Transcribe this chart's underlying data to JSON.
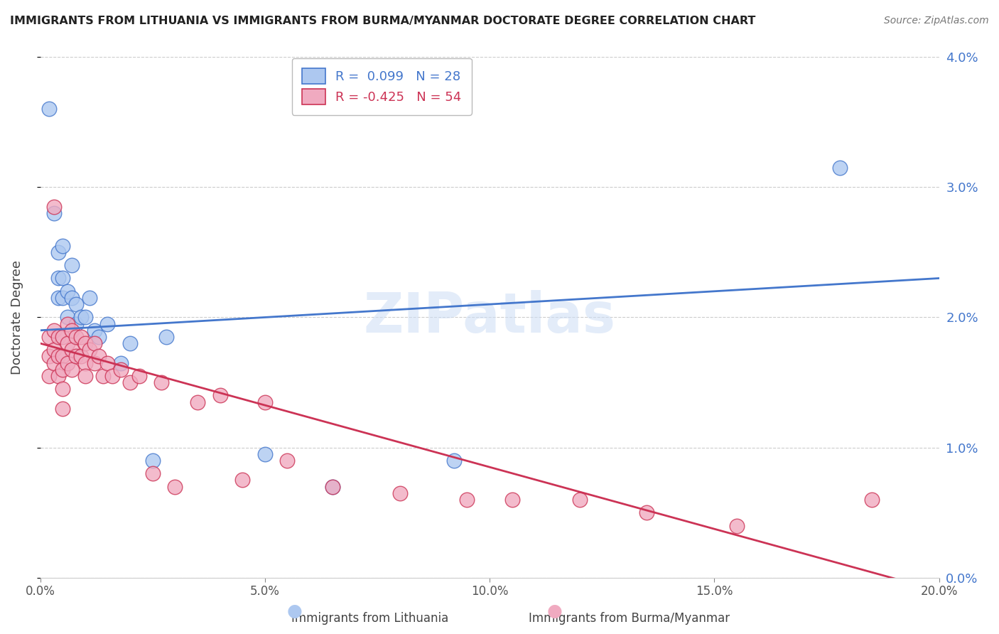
{
  "title": "IMMIGRANTS FROM LITHUANIA VS IMMIGRANTS FROM BURMA/MYANMAR DOCTORATE DEGREE CORRELATION CHART",
  "source": "Source: ZipAtlas.com",
  "ylabel": "Doctorate Degree",
  "legend_label1": "Immigrants from Lithuania",
  "legend_label2": "Immigrants from Burma/Myanmar",
  "R1": 0.099,
  "N1": 28,
  "R2": -0.425,
  "N2": 54,
  "xlim": [
    0.0,
    0.2
  ],
  "ylim": [
    0.0,
    0.04
  ],
  "xticks": [
    0.0,
    0.05,
    0.1,
    0.15,
    0.2
  ],
  "yticks": [
    0.0,
    0.01,
    0.02,
    0.03,
    0.04
  ],
  "color_blue": "#adc8f0",
  "color_pink": "#f0aac0",
  "line_color_blue": "#4477cc",
  "line_color_pink": "#cc3355",
  "tick_color": "#4477cc",
  "watermark": "ZIPatlas",
  "background_color": "#ffffff",
  "blue_x": [
    0.002,
    0.003,
    0.004,
    0.004,
    0.004,
    0.005,
    0.005,
    0.005,
    0.006,
    0.006,
    0.007,
    0.007,
    0.008,
    0.008,
    0.009,
    0.01,
    0.011,
    0.012,
    0.013,
    0.015,
    0.018,
    0.02,
    0.025,
    0.028,
    0.05,
    0.065,
    0.092,
    0.178
  ],
  "blue_y": [
    0.036,
    0.028,
    0.025,
    0.023,
    0.0215,
    0.023,
    0.0215,
    0.0255,
    0.022,
    0.02,
    0.024,
    0.0215,
    0.021,
    0.0195,
    0.02,
    0.02,
    0.0215,
    0.019,
    0.0185,
    0.0195,
    0.0165,
    0.018,
    0.009,
    0.0185,
    0.0095,
    0.007,
    0.009,
    0.0315
  ],
  "pink_x": [
    0.002,
    0.002,
    0.002,
    0.003,
    0.003,
    0.003,
    0.003,
    0.004,
    0.004,
    0.004,
    0.005,
    0.005,
    0.005,
    0.005,
    0.005,
    0.006,
    0.006,
    0.006,
    0.007,
    0.007,
    0.007,
    0.008,
    0.008,
    0.009,
    0.009,
    0.01,
    0.01,
    0.01,
    0.011,
    0.012,
    0.012,
    0.013,
    0.014,
    0.015,
    0.016,
    0.018,
    0.02,
    0.022,
    0.025,
    0.027,
    0.03,
    0.035,
    0.04,
    0.045,
    0.05,
    0.055,
    0.065,
    0.08,
    0.095,
    0.105,
    0.12,
    0.135,
    0.155,
    0.185
  ],
  "pink_y": [
    0.0185,
    0.017,
    0.0155,
    0.0285,
    0.019,
    0.0175,
    0.0165,
    0.0185,
    0.017,
    0.0155,
    0.0185,
    0.017,
    0.016,
    0.0145,
    0.013,
    0.0195,
    0.018,
    0.0165,
    0.019,
    0.0175,
    0.016,
    0.0185,
    0.017,
    0.0185,
    0.017,
    0.018,
    0.0165,
    0.0155,
    0.0175,
    0.018,
    0.0165,
    0.017,
    0.0155,
    0.0165,
    0.0155,
    0.016,
    0.015,
    0.0155,
    0.008,
    0.015,
    0.007,
    0.0135,
    0.014,
    0.0075,
    0.0135,
    0.009,
    0.007,
    0.0065,
    0.006,
    0.006,
    0.006,
    0.005,
    0.004,
    0.006
  ]
}
